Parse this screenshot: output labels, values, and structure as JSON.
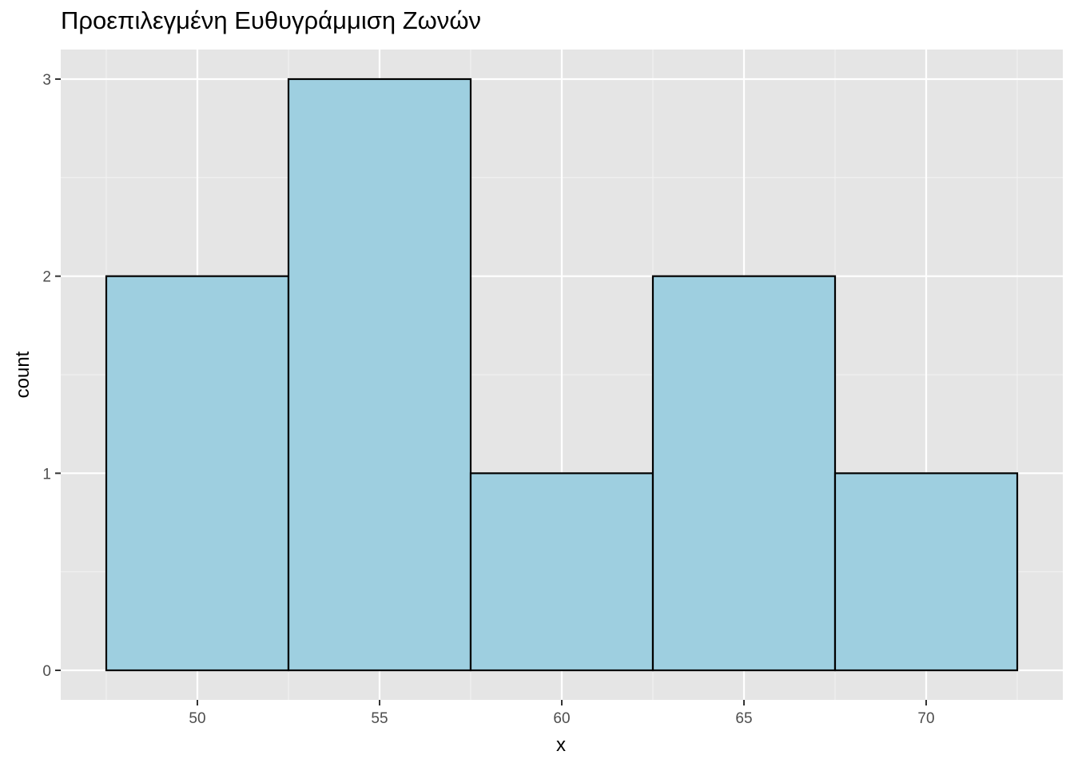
{
  "chart_data": {
    "type": "bar",
    "title": "Προεπιλεγμένη Ευθυγράμμιση Ζωνών",
    "xlabel": "x",
    "ylabel": "count",
    "bins": [
      {
        "x0": 47.5,
        "x1": 52.5,
        "count": 2
      },
      {
        "x0": 52.5,
        "x1": 57.5,
        "count": 3
      },
      {
        "x0": 57.5,
        "x1": 62.5,
        "count": 1
      },
      {
        "x0": 62.5,
        "x1": 67.5,
        "count": 2
      },
      {
        "x0": 67.5,
        "x1": 72.5,
        "count": 1
      }
    ],
    "xlim": [
      46.25,
      73.75
    ],
    "ylim": [
      -0.15,
      3.15
    ],
    "x_ticks": [
      50,
      55,
      60,
      65,
      70
    ],
    "x_tick_labels": [
      "50",
      "55",
      "60",
      "65",
      "70"
    ],
    "y_ticks": [
      0,
      1,
      2,
      3
    ],
    "y_tick_labels": [
      "0",
      "1",
      "2",
      "3"
    ],
    "grid": true,
    "colors": {
      "bar_fill": "#9ECFE0",
      "bar_stroke": "#000000",
      "panel_background": "#E5E5E5",
      "grid_major": "#FFFFFF",
      "grid_minor": "#F2F2F2"
    }
  }
}
